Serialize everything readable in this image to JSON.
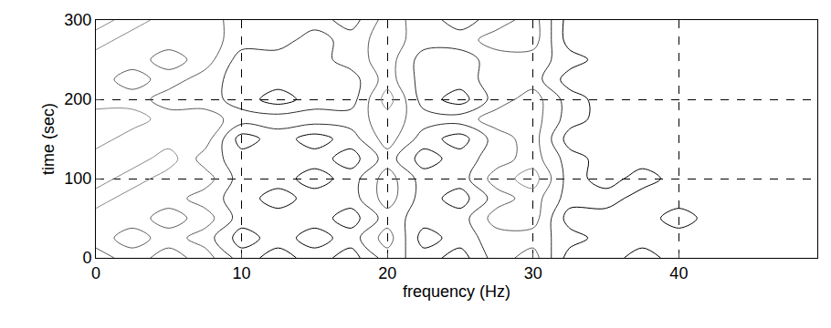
{
  "chart_data": {
    "type": "contour",
    "x_label": "frequency (Hz)",
    "y_label": "time (sec)",
    "xlim": [
      0,
      49.5
    ],
    "ylim": [
      0,
      300
    ],
    "xticks": [
      0,
      10,
      20,
      30,
      40
    ],
    "yticks": [
      0,
      100,
      200,
      300
    ],
    "grid": true,
    "color": "#000000",
    "x": [
      0,
      2.5,
      5,
      7.5,
      10,
      12.5,
      15,
      17.5,
      20,
      22.5,
      25,
      27.5,
      30,
      32.5,
      35,
      37.5,
      40,
      42.5,
      45,
      47.5,
      50
    ],
    "y": [
      0,
      25,
      50,
      75,
      100,
      125,
      150,
      175,
      200,
      225,
      250,
      275,
      300
    ],
    "z": [
      [
        2,
        3,
        2,
        3,
        1,
        0,
        1,
        0,
        2,
        1,
        0,
        2,
        3,
        0,
        0,
        1,
        0,
        0,
        0,
        0,
        0
      ],
      [
        3,
        2,
        3,
        2,
        0,
        1,
        0,
        1,
        3,
        0,
        1,
        2,
        2,
        1,
        0,
        0,
        0,
        0,
        0,
        0,
        0
      ],
      [
        3,
        3,
        2,
        3,
        1,
        1,
        1,
        0,
        2,
        1,
        1,
        3,
        3,
        0,
        0,
        0,
        1,
        0,
        0,
        0,
        0
      ],
      [
        4,
        3,
        3,
        2,
        1,
        0,
        1,
        1,
        3,
        1,
        0,
        2,
        3,
        1,
        1,
        0,
        0,
        0,
        0,
        0,
        0
      ],
      [
        3,
        4,
        3,
        3,
        1,
        1,
        0,
        1,
        3,
        1,
        1,
        3,
        4,
        1,
        0,
        1,
        0,
        0,
        0,
        0,
        0
      ],
      [
        3,
        3,
        4,
        2,
        1,
        1,
        1,
        0,
        2,
        0,
        1,
        2,
        3,
        1,
        0,
        0,
        0,
        0,
        0,
        0,
        0
      ],
      [
        4,
        3,
        3,
        3,
        0,
        1,
        0,
        1,
        3,
        1,
        0,
        2,
        3,
        0,
        0,
        0,
        0,
        0,
        0,
        0,
        0
      ],
      [
        4,
        4,
        3,
        3,
        2,
        2,
        2,
        2,
        3,
        2,
        2,
        3,
        3,
        1,
        0,
        0,
        0,
        0,
        0,
        0,
        0
      ],
      [
        3,
        3,
        2,
        2,
        1,
        0,
        1,
        1,
        4,
        1,
        0,
        2,
        3,
        1,
        0,
        0,
        0,
        0,
        0,
        0,
        0
      ],
      [
        3,
        2,
        3,
        2,
        1,
        1,
        1,
        1,
        3,
        1,
        1,
        2,
        2,
        0,
        0,
        0,
        0,
        0,
        0,
        0,
        0
      ],
      [
        3,
        3,
        2,
        3,
        1,
        1,
        1,
        2,
        3,
        1,
        1,
        2,
        2,
        1,
        0,
        0,
        0,
        0,
        0,
        0,
        0
      ],
      [
        4,
        3,
        3,
        3,
        2,
        2,
        1,
        2,
        3,
        2,
        2,
        3,
        3,
        0,
        0,
        0,
        0,
        0,
        0,
        0,
        0
      ],
      [
        3,
        4,
        3,
        3,
        2,
        2,
        2,
        1,
        3,
        2,
        1,
        2,
        3,
        0,
        0,
        0,
        0,
        0,
        0,
        0,
        0
      ]
    ]
  }
}
